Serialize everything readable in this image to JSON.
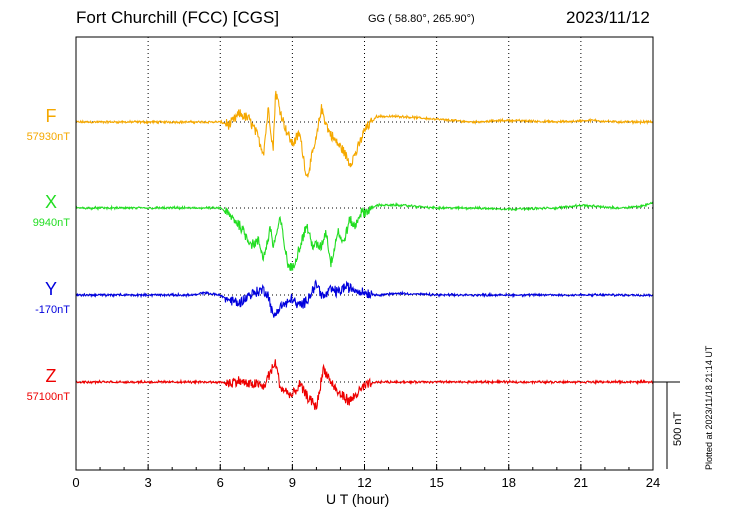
{
  "header": {
    "station": "Fort Churchill (FCC)  [CGS]",
    "coords": "GG ( 58.80°, 265.90°)",
    "date": "2023/11/12"
  },
  "plotted_note": "Plotted at 2023/11/18 21:14 UT",
  "scale_bar": {
    "label": "500 nT",
    "value_nT": 500
  },
  "chart_data": {
    "type": "line",
    "xlabel": "U T (hour)",
    "xlim": [
      0,
      24
    ],
    "xticks": [
      0,
      3,
      6,
      9,
      12,
      15,
      18,
      21,
      24
    ],
    "grid": true,
    "series": [
      {
        "name": "F",
        "baseline": "57930nT",
        "color": "#f5a800",
        "points": [
          [
            0,
            0
          ],
          [
            6,
            0
          ],
          [
            6.4,
            -5
          ],
          [
            6.8,
            15
          ],
          [
            7.2,
            5
          ],
          [
            7.5,
            -20
          ],
          [
            7.8,
            -55
          ],
          [
            8.0,
            25
          ],
          [
            8.2,
            -50
          ],
          [
            8.3,
            55
          ],
          [
            8.5,
            20
          ],
          [
            8.7,
            -10
          ],
          [
            9.0,
            -40
          ],
          [
            9.3,
            -20
          ],
          [
            9.6,
            -100
          ],
          [
            10.0,
            -30
          ],
          [
            10.2,
            25
          ],
          [
            10.5,
            -15
          ],
          [
            10.8,
            -35
          ],
          [
            11.1,
            -50
          ],
          [
            11.4,
            -75
          ],
          [
            11.7,
            -50
          ],
          [
            12.0,
            -15
          ],
          [
            12.5,
            10
          ],
          [
            13.5,
            10
          ],
          [
            15,
            5
          ],
          [
            16.5,
            0
          ],
          [
            18,
            3
          ],
          [
            20,
            0
          ],
          [
            21.5,
            3
          ],
          [
            22.5,
            0
          ],
          [
            23.5,
            0
          ],
          [
            24,
            0
          ]
        ]
      },
      {
        "name": "X",
        "baseline": "9940nT",
        "color": "#22dd22",
        "points": [
          [
            0,
            0
          ],
          [
            6,
            0
          ],
          [
            6.3,
            -10
          ],
          [
            6.8,
            -30
          ],
          [
            7.0,
            -45
          ],
          [
            7.3,
            -65
          ],
          [
            7.6,
            -60
          ],
          [
            7.8,
            -90
          ],
          [
            8.1,
            -35
          ],
          [
            8.2,
            -70
          ],
          [
            8.5,
            -20
          ],
          [
            8.8,
            -100
          ],
          [
            9.0,
            -110
          ],
          [
            9.3,
            -70
          ],
          [
            9.6,
            -30
          ],
          [
            9.8,
            -65
          ],
          [
            10.2,
            -70
          ],
          [
            10.4,
            -40
          ],
          [
            10.6,
            -100
          ],
          [
            10.9,
            -40
          ],
          [
            11.1,
            -65
          ],
          [
            11.4,
            -20
          ],
          [
            11.6,
            -35
          ],
          [
            11.8,
            -10
          ],
          [
            12.0,
            -8
          ],
          [
            12.5,
            5
          ],
          [
            13.5,
            5
          ],
          [
            15,
            0
          ],
          [
            16.5,
            0
          ],
          [
            18,
            -2
          ],
          [
            20,
            0
          ],
          [
            21,
            5
          ],
          [
            21.6,
            3
          ],
          [
            22.5,
            0
          ],
          [
            23.5,
            3
          ],
          [
            24,
            10
          ]
        ]
      },
      {
        "name": "Y",
        "baseline": "-170nT",
        "color": "#0000dd",
        "points": [
          [
            0,
            0
          ],
          [
            5,
            0
          ],
          [
            5.3,
            4
          ],
          [
            6,
            0
          ],
          [
            6.3,
            -8
          ],
          [
            6.8,
            -15
          ],
          [
            7.2,
            0
          ],
          [
            7.8,
            10
          ],
          [
            8.0,
            0
          ],
          [
            8.2,
            -40
          ],
          [
            8.5,
            -20
          ],
          [
            8.8,
            -15
          ],
          [
            9.0,
            -5
          ],
          [
            9.2,
            -20
          ],
          [
            9.5,
            -15
          ],
          [
            10.0,
            20
          ],
          [
            10.3,
            -5
          ],
          [
            10.6,
            10
          ],
          [
            10.9,
            5
          ],
          [
            11.2,
            15
          ],
          [
            11.6,
            10
          ],
          [
            12.0,
            5
          ],
          [
            12.5,
            0
          ],
          [
            13.5,
            3
          ],
          [
            15,
            0
          ],
          [
            18,
            0
          ],
          [
            20,
            0
          ],
          [
            22,
            0
          ],
          [
            24,
            0
          ]
        ]
      },
      {
        "name": "Z",
        "baseline": "57100nT",
        "color": "#ee0000",
        "points": [
          [
            0,
            0
          ],
          [
            6,
            0
          ],
          [
            6.3,
            -2
          ],
          [
            6.8,
            2
          ],
          [
            7.2,
            -5
          ],
          [
            7.5,
            -3
          ],
          [
            7.8,
            -10
          ],
          [
            8.0,
            10
          ],
          [
            8.3,
            35
          ],
          [
            8.5,
            -10
          ],
          [
            9.0,
            -25
          ],
          [
            9.3,
            -5
          ],
          [
            9.6,
            -25
          ],
          [
            10.0,
            -45
          ],
          [
            10.3,
            25
          ],
          [
            10.6,
            0
          ],
          [
            10.9,
            -20
          ],
          [
            11.1,
            -25
          ],
          [
            11.4,
            -35
          ],
          [
            11.7,
            -20
          ],
          [
            12.0,
            -8
          ],
          [
            12.5,
            0
          ],
          [
            14,
            0
          ],
          [
            16,
            0
          ],
          [
            18,
            0
          ],
          [
            20,
            0
          ],
          [
            21.5,
            0
          ],
          [
            23,
            0
          ],
          [
            24,
            0
          ]
        ]
      }
    ]
  }
}
